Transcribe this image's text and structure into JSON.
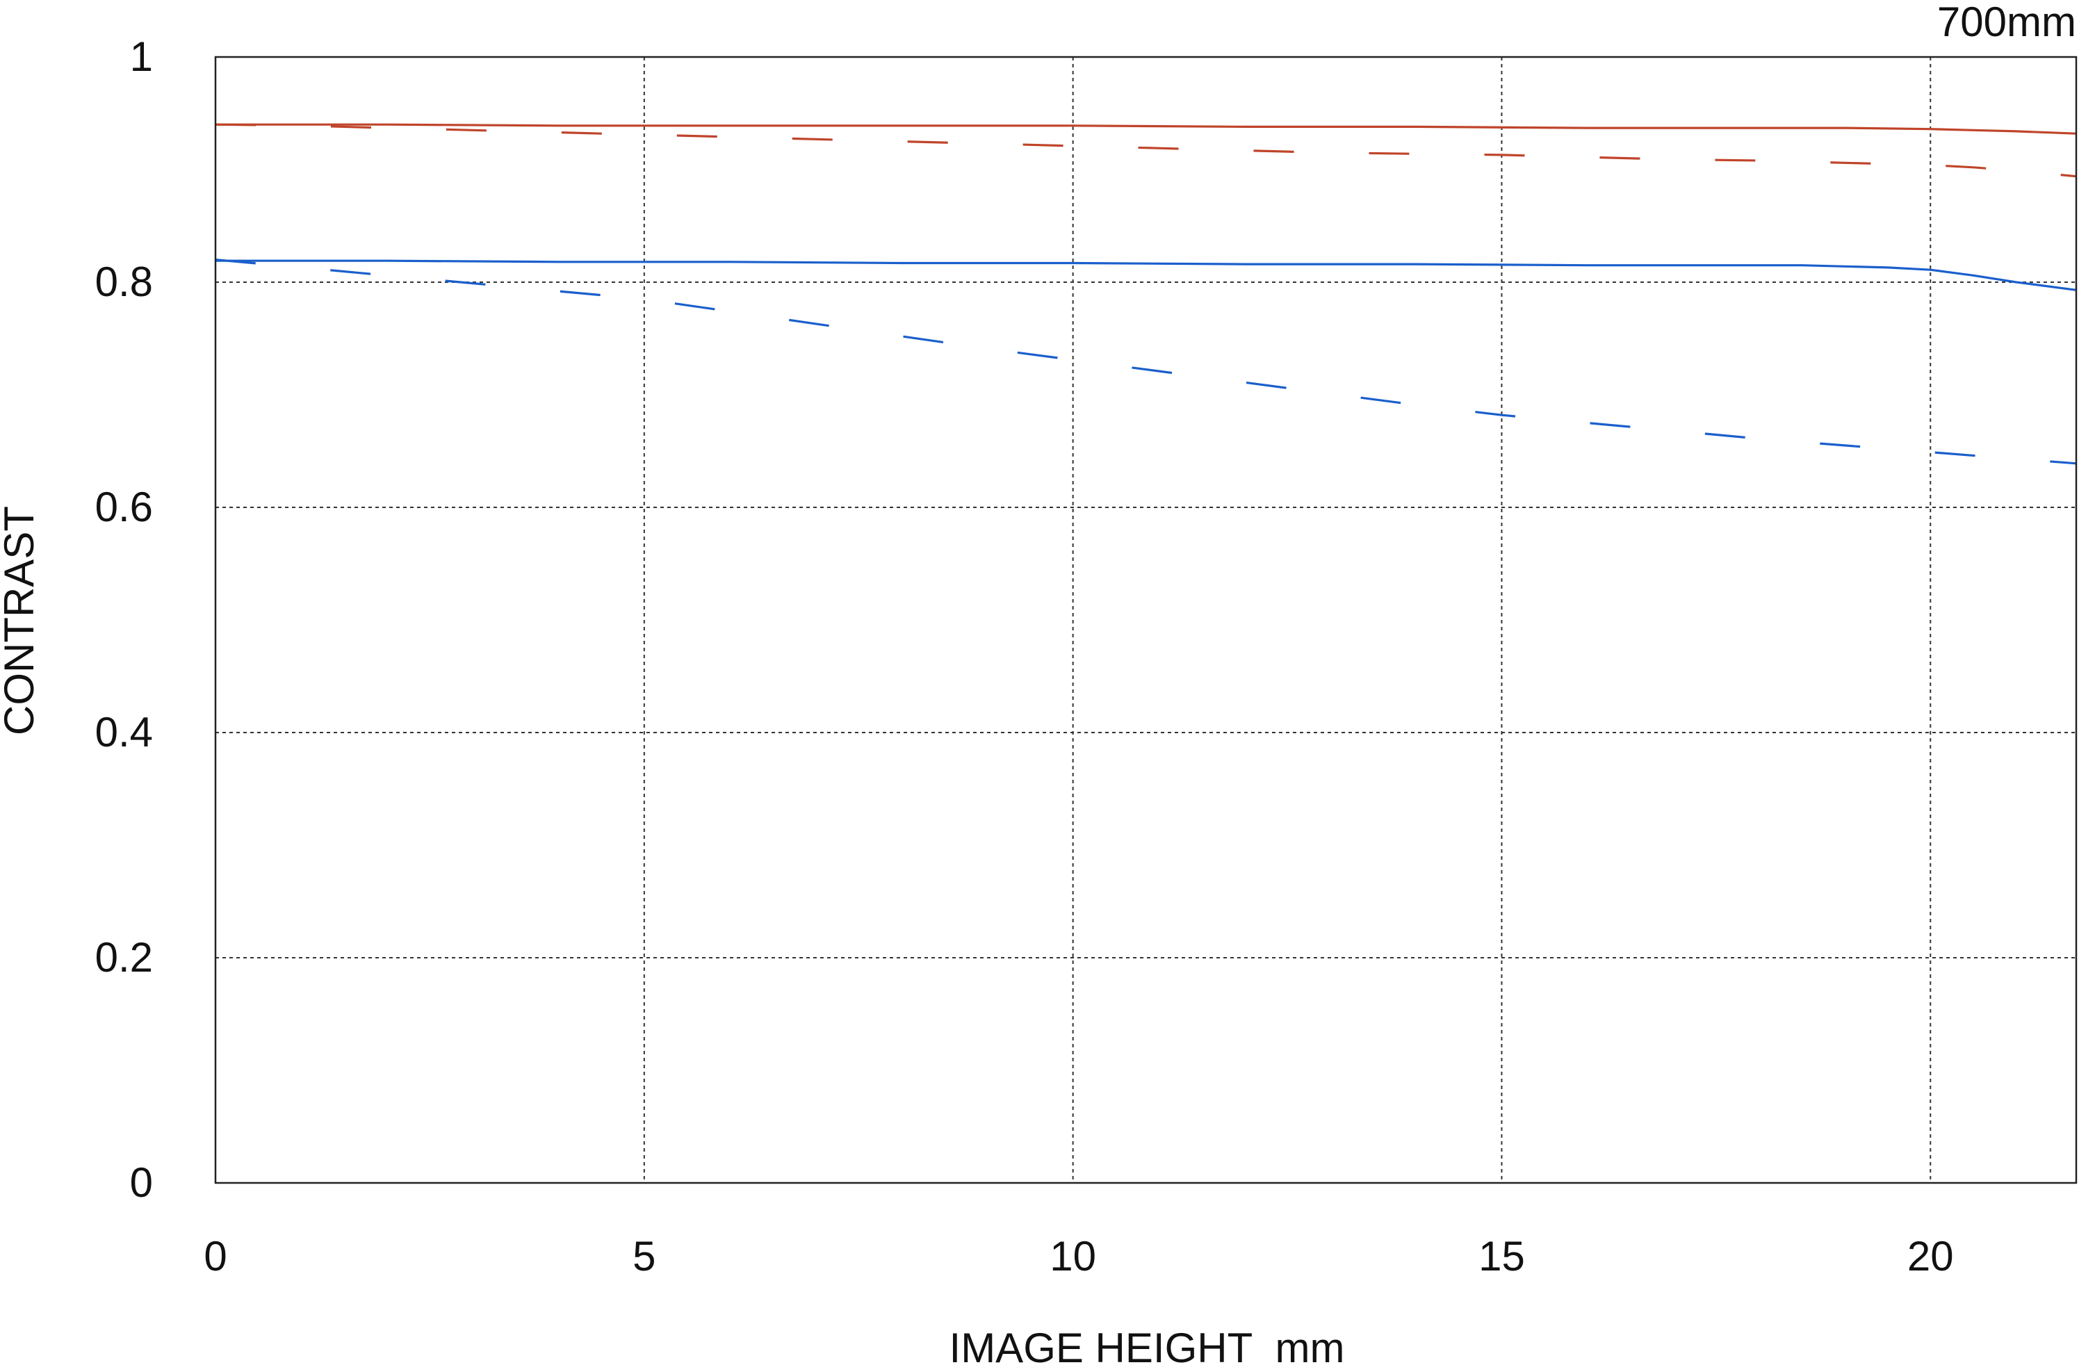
{
  "chart_data": {
    "type": "line",
    "title": "700mm",
    "xlabel": "IMAGE HEIGHT  mm",
    "ylabel": "CONTRAST",
    "xlim": [
      0,
      21.7
    ],
    "ylim": [
      0,
      1
    ],
    "x_ticks": [
      0,
      5,
      10,
      15,
      20
    ],
    "x_tick_labels": [
      "0",
      "5",
      "10",
      "15",
      "20"
    ],
    "y_ticks": [
      0,
      0.2,
      0.4,
      0.6,
      0.8,
      1
    ],
    "y_tick_labels": [
      "0",
      "0.2",
      "0.4",
      "0.6",
      "0.8",
      "1"
    ],
    "grid": true,
    "series": [
      {
        "color": "#c0442a",
        "style": "solid",
        "x": [
          0,
          2,
          4,
          6,
          8,
          10,
          12,
          14,
          16,
          18,
          19,
          20,
          20.5,
          21,
          21.7
        ],
        "values": [
          0.94,
          0.94,
          0.939,
          0.939,
          0.939,
          0.939,
          0.938,
          0.938,
          0.937,
          0.937,
          0.937,
          0.936,
          0.935,
          0.934,
          0.932
        ]
      },
      {
        "color": "#c0442a",
        "style": "dashed",
        "x": [
          0,
          1,
          2,
          3,
          4,
          5,
          6,
          7,
          8,
          9,
          10,
          11,
          12,
          13,
          14,
          15,
          16,
          17,
          18,
          19,
          20,
          20.5,
          21,
          21.7
        ],
        "values": [
          0.94,
          0.939,
          0.937,
          0.935,
          0.933,
          0.931,
          0.929,
          0.927,
          0.925,
          0.923,
          0.921,
          0.919,
          0.917,
          0.915,
          0.914,
          0.913,
          0.911,
          0.909,
          0.908,
          0.906,
          0.904,
          0.902,
          0.899,
          0.894
        ]
      },
      {
        "color": "#1a5fcc",
        "style": "solid",
        "x": [
          0,
          2,
          4,
          6,
          8,
          10,
          12,
          14,
          16,
          17,
          18,
          18.5,
          19,
          19.5,
          20,
          20.5,
          21,
          21.7
        ],
        "values": [
          0.819,
          0.819,
          0.818,
          0.818,
          0.817,
          0.817,
          0.816,
          0.816,
          0.815,
          0.815,
          0.815,
          0.815,
          0.814,
          0.813,
          0.811,
          0.806,
          0.8,
          0.793
        ]
      },
      {
        "color": "#1a5fcc",
        "style": "dashed",
        "x": [
          0,
          1,
          2,
          3,
          4,
          5,
          6,
          7,
          8,
          9,
          10,
          11,
          12,
          13,
          14,
          15,
          16,
          17,
          18,
          19,
          20,
          21,
          21.7
        ],
        "values": [
          0.82,
          0.813,
          0.806,
          0.799,
          0.792,
          0.785,
          0.774,
          0.763,
          0.752,
          0.741,
          0.731,
          0.721,
          0.711,
          0.701,
          0.691,
          0.682,
          0.675,
          0.668,
          0.661,
          0.655,
          0.649,
          0.643,
          0.639
        ]
      }
    ]
  }
}
